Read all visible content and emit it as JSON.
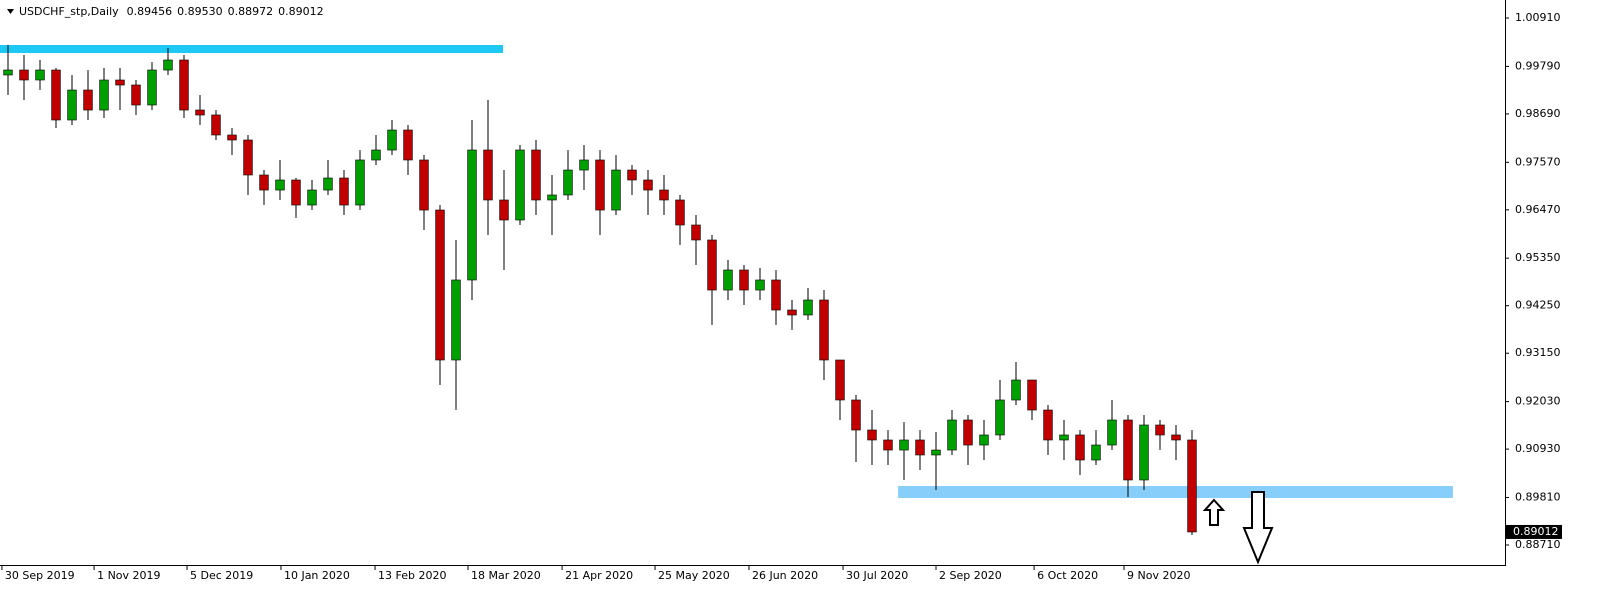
{
  "chart_data": {
    "type": "candlestick",
    "title": "USDCHF_stp,Daily",
    "header_values": [
      "0.89456",
      "0.89530",
      "0.88972",
      "0.89012"
    ],
    "x": [
      0,
      1,
      2,
      3,
      4,
      5,
      6,
      7,
      8,
      9,
      10,
      11,
      12,
      13,
      14,
      15,
      16,
      17,
      18,
      19,
      20,
      21,
      22,
      23,
      24,
      25,
      26,
      27,
      28,
      29,
      30,
      31,
      32,
      33,
      34,
      35,
      36,
      37,
      38,
      39,
      40,
      41,
      42,
      43,
      44,
      45,
      46,
      47,
      48,
      49,
      50,
      51,
      52,
      53,
      54,
      55,
      56,
      57,
      58,
      59,
      60,
      61,
      62,
      63,
      64,
      65,
      66,
      67,
      68,
      69,
      70,
      71,
      72,
      73,
      74
    ],
    "open": [
      0.99591,
      0.99706,
      0.99475,
      0.99706,
      0.98549,
      0.99243,
      0.9878,
      0.99475,
      0.99359,
      0.98896,
      0.99706,
      0.99938,
      0.9878,
      0.98665,
      0.98202,
      0.98086,
      0.97276,
      0.96928,
      0.9716,
      0.96581,
      0.96928,
      0.97206,
      0.96581,
      0.97623,
      0.97854,
      0.98317,
      0.97623,
      0.96465,
      0.92993,
      0.94845,
      0.97854,
      0.96697,
      0.96234,
      0.97854,
      0.96697,
      0.96813,
      0.97391,
      0.97623,
      0.96465,
      0.97391,
      0.9716,
      0.96928,
      0.96697,
      0.96118,
      0.95771,
      0.94613,
      0.95076,
      0.94613,
      0.94845,
      0.9415,
      0.94035,
      0.94382,
      0.92993,
      0.92067,
      0.91372,
      0.91141,
      0.90909,
      0.91141,
      0.90794,
      0.90909,
      0.91604,
      0.91025,
      0.91257,
      0.92067,
      0.9253,
      0.91835,
      0.91141,
      0.91257,
      0.90678,
      0.91025,
      0.91604,
      0.90215,
      0.91488,
      0.91257,
      0.91141
    ],
    "high": [
      1.00285,
      1.00054,
      0.99938,
      0.99753,
      0.99591,
      0.99706,
      0.99753,
      0.99753,
      0.99475,
      0.99892,
      1.00216,
      1.00054,
      0.99128,
      0.9878,
      0.98364,
      0.98202,
      0.97391,
      0.97623,
      0.97206,
      0.9716,
      0.97623,
      0.97391,
      0.97854,
      0.98202,
      0.98549,
      0.98433,
      0.97739,
      0.96581,
      0.95771,
      0.98549,
      0.99012,
      0.97391,
      0.9797,
      0.98086,
      0.97276,
      0.97854,
      0.9797,
      0.97854,
      0.97739,
      0.97507,
      0.97391,
      0.97276,
      0.96813,
      0.9635,
      0.95887,
      0.95308,
      0.95192,
      0.95123,
      0.95076,
      0.94382,
      0.9466,
      0.94613,
      0.92993,
      0.92183,
      0.91835,
      0.91372,
      0.91558,
      0.91372,
      0.91326,
      0.91835,
      0.9172,
      0.91604,
      0.9253,
      0.92947,
      0.9253,
      0.91951,
      0.91604,
      0.91372,
      0.91372,
      0.92067,
      0.9172,
      0.9172,
      0.91604,
      0.91488,
      0.91372
    ],
    "low": [
      0.99128,
      0.99012,
      0.99243,
      0.98364,
      0.98433,
      0.98549,
      0.98595,
      0.9878,
      0.98665,
      0.9878,
      0.99591,
      0.98595,
      0.98433,
      0.98086,
      0.97739,
      0.96813,
      0.96581,
      0.96697,
      0.9628,
      0.96465,
      0.96813,
      0.9635,
      0.96465,
      0.97507,
      0.97739,
      0.97276,
      0.96002,
      0.92414,
      0.91835,
      0.94382,
      0.95887,
      0.95076,
      0.96118,
      0.9635,
      0.95887,
      0.96697,
      0.96928,
      0.95887,
      0.9635,
      0.96813,
      0.9635,
      0.9635,
      0.95655,
      0.95192,
      0.93803,
      0.94382,
      0.94266,
      0.94382,
      0.93803,
      0.93687,
      0.93919,
      0.9253,
      0.91604,
      0.90632,
      0.90562,
      0.90562,
      0.90215,
      0.90446,
      0.89983,
      0.90794,
      0.90562,
      0.90678,
      0.91141,
      0.91951,
      0.91604,
      0.90794,
      0.90678,
      0.90331,
      0.90562,
      0.90909,
      0.89821,
      0.89983,
      0.90909,
      0.90678,
      0.88942
    ],
    "close": [
      0.99706,
      0.99475,
      0.99706,
      0.98549,
      0.99243,
      0.9878,
      0.99475,
      0.99359,
      0.98896,
      0.99706,
      0.99938,
      0.9878,
      0.98665,
      0.98202,
      0.98086,
      0.97276,
      0.96928,
      0.9716,
      0.96581,
      0.96928,
      0.97206,
      0.96581,
      0.97623,
      0.97854,
      0.98317,
      0.97623,
      0.96465,
      0.92993,
      0.94845,
      0.97854,
      0.96697,
      0.96234,
      0.97854,
      0.96697,
      0.96813,
      0.97391,
      0.97623,
      0.96465,
      0.97391,
      0.9716,
      0.96928,
      0.96697,
      0.96118,
      0.95771,
      0.94613,
      0.95076,
      0.94613,
      0.94845,
      0.9415,
      0.94035,
      0.94382,
      0.92993,
      0.92067,
      0.91372,
      0.91141,
      0.90909,
      0.91141,
      0.90794,
      0.90909,
      0.91604,
      0.91025,
      0.91257,
      0.92067,
      0.9253,
      0.91835,
      0.91141,
      0.91257,
      0.90678,
      0.91025,
      0.91604,
      0.90215,
      0.91488,
      0.91257,
      0.91141,
      0.89012
    ],
    "up_color": "#00a000",
    "down_color": "#c00000",
    "wick_color": "#000000",
    "xlim": [
      -0.5,
      93.5625
    ],
    "ylim": [
      0.88247,
      1.01327
    ],
    "yticks": [
      {
        "value": 1.0091,
        "label": "1.00910"
      },
      {
        "value": 0.9979,
        "label": "0.99790"
      },
      {
        "value": 0.9869,
        "label": "0.98690"
      },
      {
        "value": 0.9757,
        "label": "0.97570"
      },
      {
        "value": 0.9647,
        "label": "0.96470"
      },
      {
        "value": 0.9535,
        "label": "0.95350"
      },
      {
        "value": 0.9425,
        "label": "0.94250"
      },
      {
        "value": 0.9315,
        "label": "0.93150"
      },
      {
        "value": 0.9203,
        "label": "0.92030"
      },
      {
        "value": 0.9093,
        "label": "0.90930"
      },
      {
        "value": 0.8981,
        "label": "0.89810"
      },
      {
        "value": 0.8871,
        "label": "0.88710"
      }
    ],
    "xticks": [
      {
        "value": -0.38,
        "label": "30 Sep 2019"
      },
      {
        "value": 5.38,
        "label": "1 Nov 2019"
      },
      {
        "value": 11.19,
        "label": "5 Dec 2019"
      },
      {
        "value": 17.06,
        "label": "10 Jan 2020"
      },
      {
        "value": 22.94,
        "label": "13 Feb 2020"
      },
      {
        "value": 28.75,
        "label": "18 Mar 2020"
      },
      {
        "value": 34.63,
        "label": "21 Apr 2020"
      },
      {
        "value": 40.44,
        "label": "25 May 2020"
      },
      {
        "value": 46.31,
        "label": "26 Jun 2020"
      },
      {
        "value": 52.19,
        "label": "30 Jul 2020"
      },
      {
        "value": 58,
        "label": "2 Sep 2020"
      },
      {
        "value": 64.13,
        "label": "6 Oct 2020"
      },
      {
        "value": 69.75,
        "label": "9 Nov 2020"
      }
    ],
    "zones": [
      {
        "x_range": [
          -0.5,
          30.94
        ],
        "y_range": [
          1.001,
          1.00285
        ],
        "color": "#1ec8f5"
      },
      {
        "x_range": [
          55.63,
          90.31
        ],
        "y_range": [
          0.89798,
          0.90076
        ],
        "color": "#87cefa"
      }
    ]
  }
}
